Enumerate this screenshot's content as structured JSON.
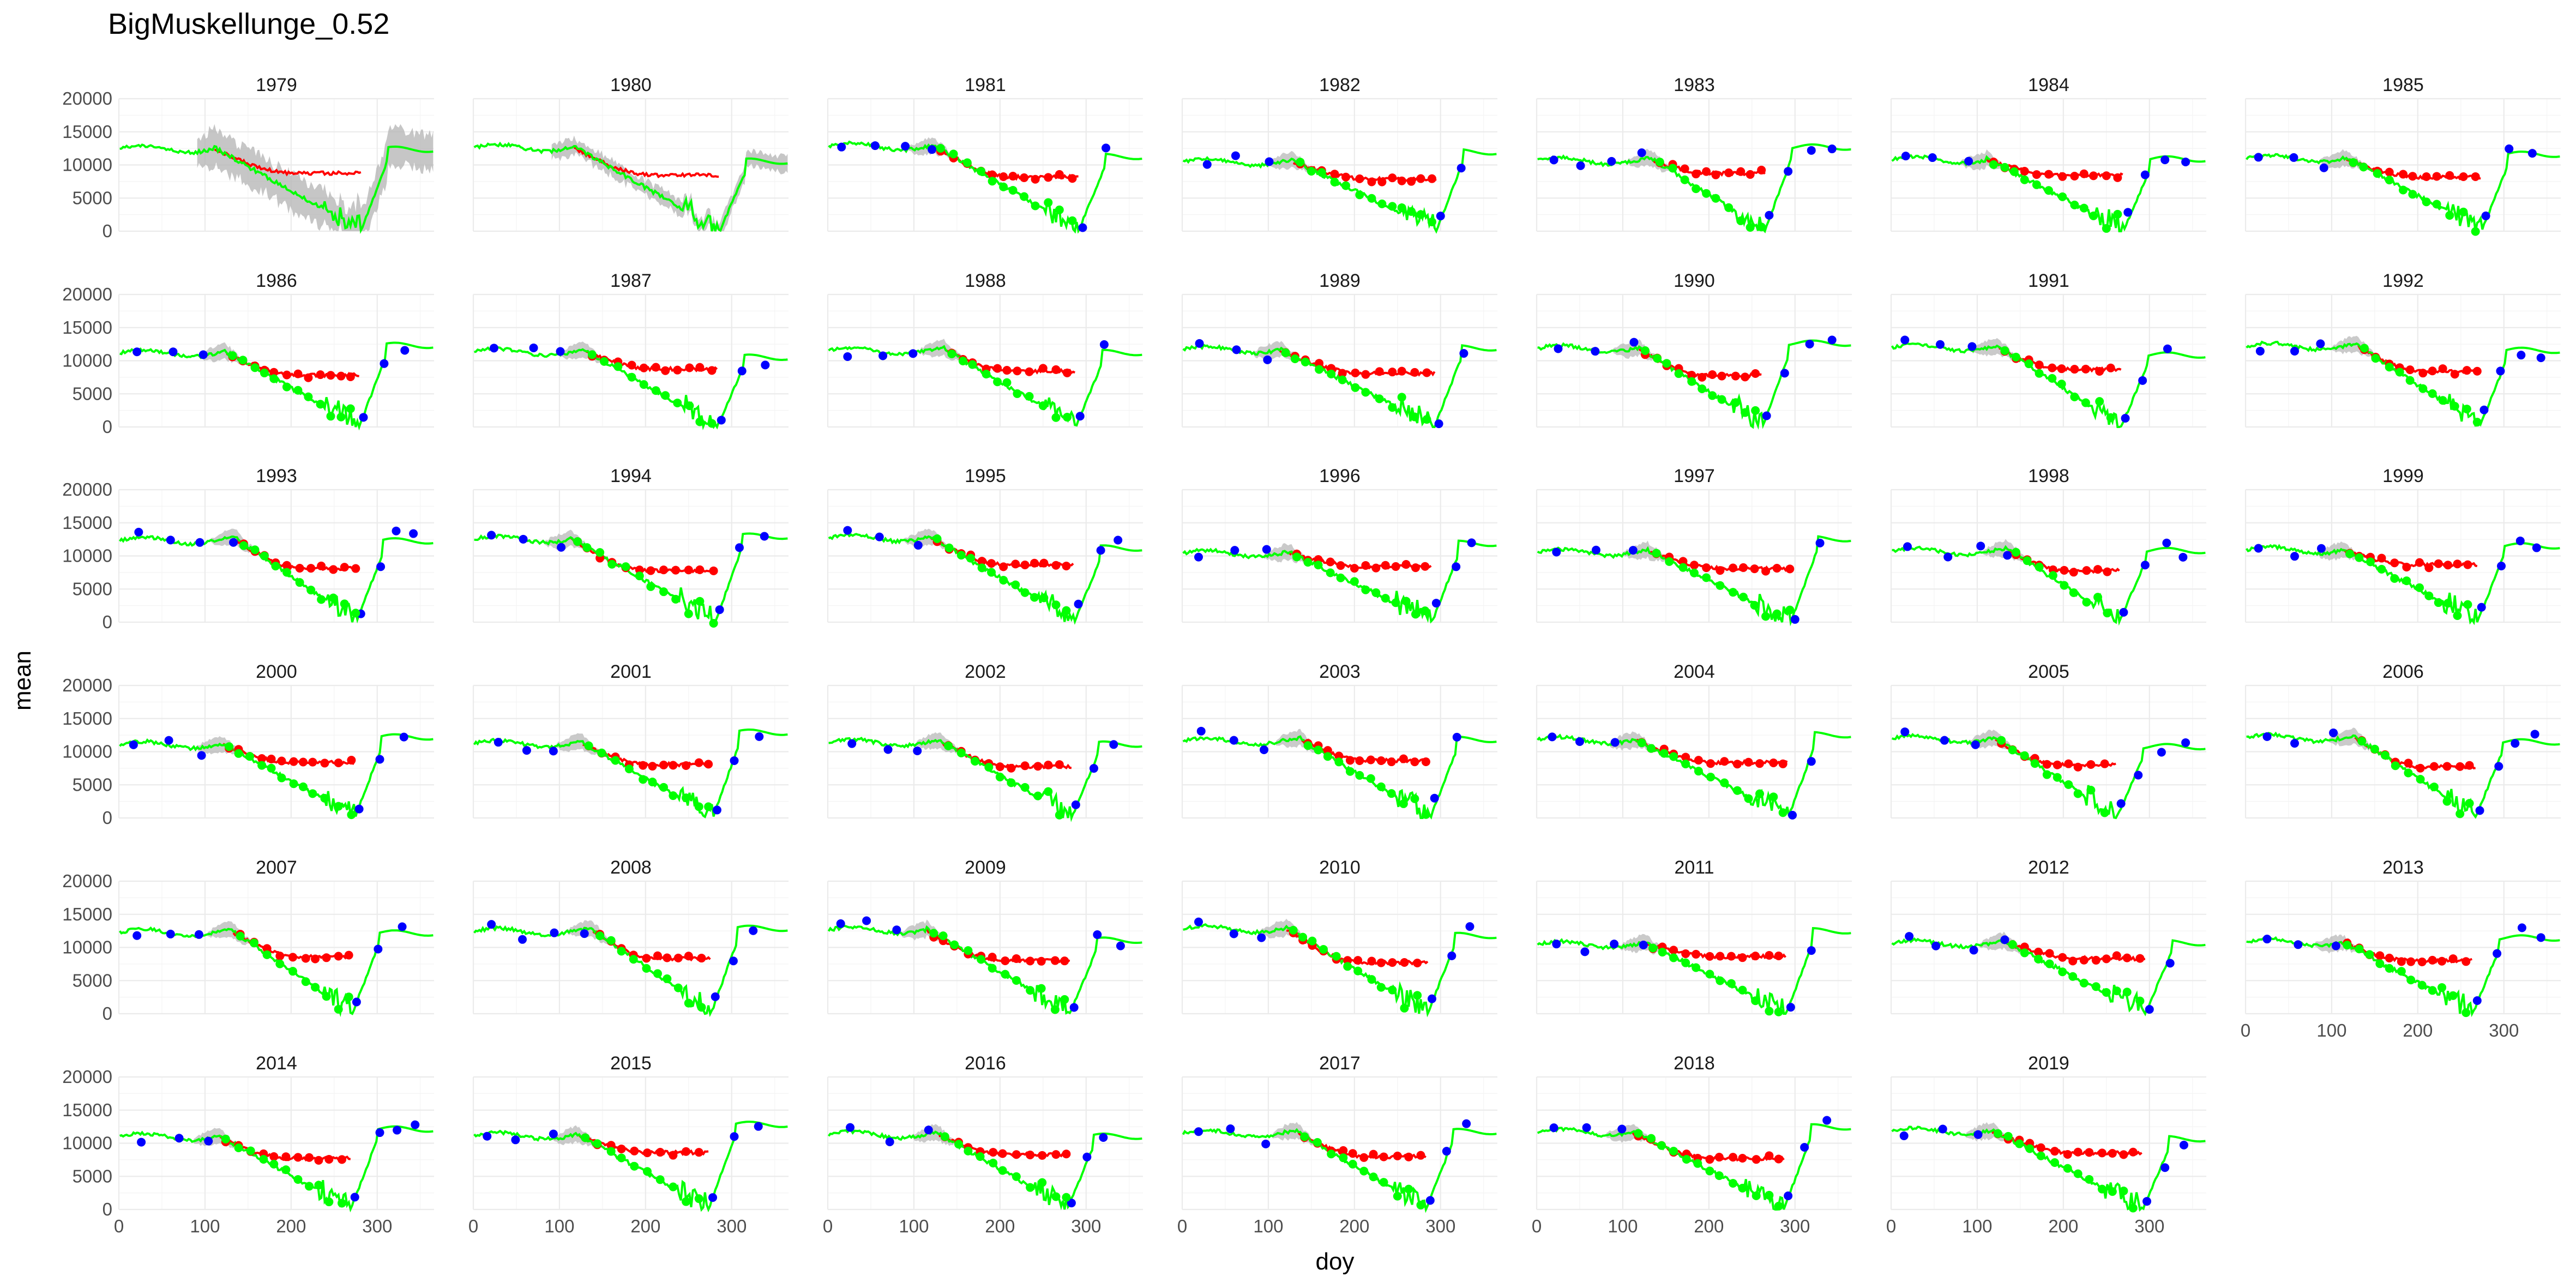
{
  "chart_data": {
    "type": "line",
    "title": "BigMuskellunge_0.52",
    "xlabel": "doy",
    "ylabel": "mean",
    "xlim": [
      0,
      366
    ],
    "ylim": [
      0,
      20000
    ],
    "x_ticks": [
      0,
      100,
      200,
      300
    ],
    "y_ticks": [
      0,
      5000,
      10000,
      15000,
      20000
    ],
    "x_tick_labels": [
      "0",
      "100",
      "200",
      "300"
    ],
    "y_tick_labels": [
      "0",
      "5000",
      "10000",
      "15000",
      "20000"
    ],
    "grid": true,
    "legend": "none",
    "facet_layout": {
      "columns": 7,
      "rows": 6
    },
    "colors": {
      "red_series": "#ff0000",
      "green_series": "#00ff00",
      "blue_points": "#0000ff",
      "ribbon": "#b3b3b3"
    },
    "panels": [
      {
        "year": "1979",
        "label": "1979"
      },
      {
        "year": "1980",
        "label": "1980"
      },
      {
        "year": "1981",
        "label": "1981"
      },
      {
        "year": "1982",
        "label": "1982"
      },
      {
        "year": "1983",
        "label": "1983"
      },
      {
        "year": "1984",
        "label": "1984"
      },
      {
        "year": "1985",
        "label": "1985"
      },
      {
        "year": "1986",
        "label": "1986"
      },
      {
        "year": "1987",
        "label": "1987"
      },
      {
        "year": "1988",
        "label": "1988"
      },
      {
        "year": "1989",
        "label": "1989"
      },
      {
        "year": "1990",
        "label": "1990"
      },
      {
        "year": "1991",
        "label": "1991"
      },
      {
        "year": "1992",
        "label": "1992"
      },
      {
        "year": "1993",
        "label": "1993"
      },
      {
        "year": "1994",
        "label": "1994"
      },
      {
        "year": "1995",
        "label": "1995"
      },
      {
        "year": "1996",
        "label": "1996"
      },
      {
        "year": "1997",
        "label": "1997"
      },
      {
        "year": "1998",
        "label": "1998"
      },
      {
        "year": "1999",
        "label": "1999"
      },
      {
        "year": "2000",
        "label": "2000"
      },
      {
        "year": "2001",
        "label": "2001"
      },
      {
        "year": "2002",
        "label": "2002"
      },
      {
        "year": "2003",
        "label": "2003"
      },
      {
        "year": "2004",
        "label": "2004"
      },
      {
        "year": "2005",
        "label": "2005"
      },
      {
        "year": "2006",
        "label": "2006"
      },
      {
        "year": "2007",
        "label": "2007"
      },
      {
        "year": "2008",
        "label": "2008"
      },
      {
        "year": "2009",
        "label": "2009"
      },
      {
        "year": "2010",
        "label": "2010"
      },
      {
        "year": "2011",
        "label": "2011"
      },
      {
        "year": "2012",
        "label": "2012"
      },
      {
        "year": "2013",
        "label": "2013"
      },
      {
        "year": "2014",
        "label": "2014"
      },
      {
        "year": "2015",
        "label": "2015"
      },
      {
        "year": "2016",
        "label": "2016"
      },
      {
        "year": "2017",
        "label": "2017"
      },
      {
        "year": "2018",
        "label": "2018"
      },
      {
        "year": "2019",
        "label": "2019"
      }
    ]
  }
}
